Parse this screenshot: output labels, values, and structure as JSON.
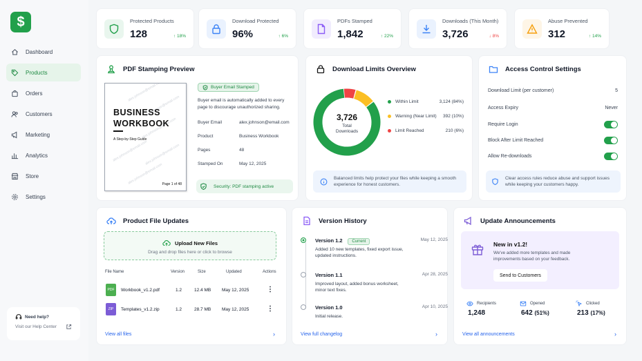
{
  "sidebar": {
    "logo": "$",
    "items": [
      {
        "label": "Dashboard",
        "icon": "home-icon"
      },
      {
        "label": "Products",
        "icon": "tag-icon"
      },
      {
        "label": "Orders",
        "icon": "bag-icon"
      },
      {
        "label": "Customers",
        "icon": "users-icon"
      },
      {
        "label": "Marketing",
        "icon": "megaphone-icon"
      },
      {
        "label": "Analytics",
        "icon": "bar-chart-icon"
      },
      {
        "label": "Store",
        "icon": "store-icon"
      },
      {
        "label": "Settings",
        "icon": "gear-icon"
      }
    ],
    "help": {
      "title": "Need help?",
      "subtitle": "Visit our Help Center"
    }
  },
  "stats": [
    {
      "label": "Protected Products",
      "value": "128",
      "change": "18%",
      "dir": "up",
      "icon": "shield-icon",
      "color": "#22a04b"
    },
    {
      "label": "Download Protected",
      "value": "96%",
      "change": "6%",
      "dir": "up",
      "icon": "lock-icon",
      "color": "#3b82f6"
    },
    {
      "label": "PDFs Stamped",
      "value": "1,842",
      "change": "22%",
      "dir": "up",
      "icon": "document-icon",
      "color": "#8b5cf6"
    },
    {
      "label": "Downloads (This Month)",
      "value": "3,726",
      "change": "8%",
      "dir": "down",
      "icon": "download-icon",
      "color": "#3b82f6"
    },
    {
      "label": "Abuse Prevented",
      "value": "312",
      "change": "14%",
      "dir": "up",
      "icon": "warning-icon",
      "color": "#f59e0b"
    }
  ],
  "stamping": {
    "title": "PDF Stamping Preview",
    "doc_title_1": "BUSINESS",
    "doc_title_2": "WORKBOOK",
    "doc_subtitle": "A Step-by-Step Guide",
    "doc_page": "Page 1 of 48",
    "watermark": "alex.johnson@email.com",
    "badge": "Buyer Email Stamped",
    "desc": "Buyer email is automatically added to every page to discourage unauthorized sharing.",
    "fields": [
      {
        "k": "Buyer Email",
        "v": "alex.johnson@email.com"
      },
      {
        "k": "Product",
        "v": "Business Workbook"
      },
      {
        "k": "Pages",
        "v": "48"
      },
      {
        "k": "Stamped On",
        "v": "May 12, 2025"
      }
    ],
    "security": "Security: PDF stamping active"
  },
  "limits": {
    "title": "Download Limits Overview",
    "total": "3,726",
    "total_label_1": "Total",
    "total_label_2": "Downloads",
    "legend": [
      {
        "label": "Within Limit",
        "value": "3,124 (84%)",
        "color": "#22a04b",
        "pct": 84
      },
      {
        "label": "Warning (Near Limit)",
        "value": "392 (10%)",
        "color": "#fbbf24",
        "pct": 10
      },
      {
        "label": "Limit Reached",
        "value": "210 (6%)",
        "color": "#ef4444",
        "pct": 6
      }
    ],
    "note": "Balanced limits help protect your files while keeping a smooth experience for honest customers."
  },
  "access": {
    "title": "Access Control Settings",
    "rows": [
      {
        "label": "Download Limit (per customer)",
        "value": "5"
      },
      {
        "label": "Access Expiry",
        "value": "Never"
      }
    ],
    "toggles": [
      {
        "label": "Require Login",
        "on": true
      },
      {
        "label": "Block After Limit Reached",
        "on": true
      },
      {
        "label": "Allow Re-downloads",
        "on": true
      }
    ],
    "note": "Clear access rules reduce abuse and support issues while keeping your customers happy."
  },
  "files": {
    "title": "Product File Updates",
    "upload_title": "Upload New Files",
    "upload_sub": "Drag and drop files here or click to browse",
    "headers": [
      "File Name",
      "Version",
      "Size",
      "Updated",
      "Actions"
    ],
    "rows": [
      {
        "type": "PDF",
        "name": "Workbook_v1.2.pdf",
        "version": "1.2",
        "size": "12.4 MB",
        "updated": "May 12, 2025"
      },
      {
        "type": "ZIP",
        "name": "Templates_v1.2.zip",
        "version": "1.2",
        "size": "28.7 MB",
        "updated": "May 12, 2025"
      }
    ],
    "link": "View all files"
  },
  "versions": {
    "title": "Version History",
    "current_badge": "Current",
    "items": [
      {
        "name": "Version 1.2",
        "date": "May 12, 2025",
        "desc": "Added 10 new templates, fixed export issue, updated instructions."
      },
      {
        "name": "Version 1.1",
        "date": "Apr 28, 2025",
        "desc": "Improved layout, added bonus worksheet, minor text fixes."
      },
      {
        "name": "Version 1.0",
        "date": "Apr 10, 2025",
        "desc": "Initial release."
      }
    ],
    "link": "View full changelog"
  },
  "announce": {
    "title": "Update Announcements",
    "heading": "New in v1.2!",
    "desc": "We've added more templates and made improvements based on your feedback.",
    "button": "Send to Customers",
    "metrics": [
      {
        "label": "Recipients",
        "value": "1,248",
        "pct": ""
      },
      {
        "label": "Opened",
        "value": "642",
        "pct": "(51%)"
      },
      {
        "label": "Clicked",
        "value": "213",
        "pct": "(17%)"
      }
    ],
    "link": "View all announcements"
  }
}
